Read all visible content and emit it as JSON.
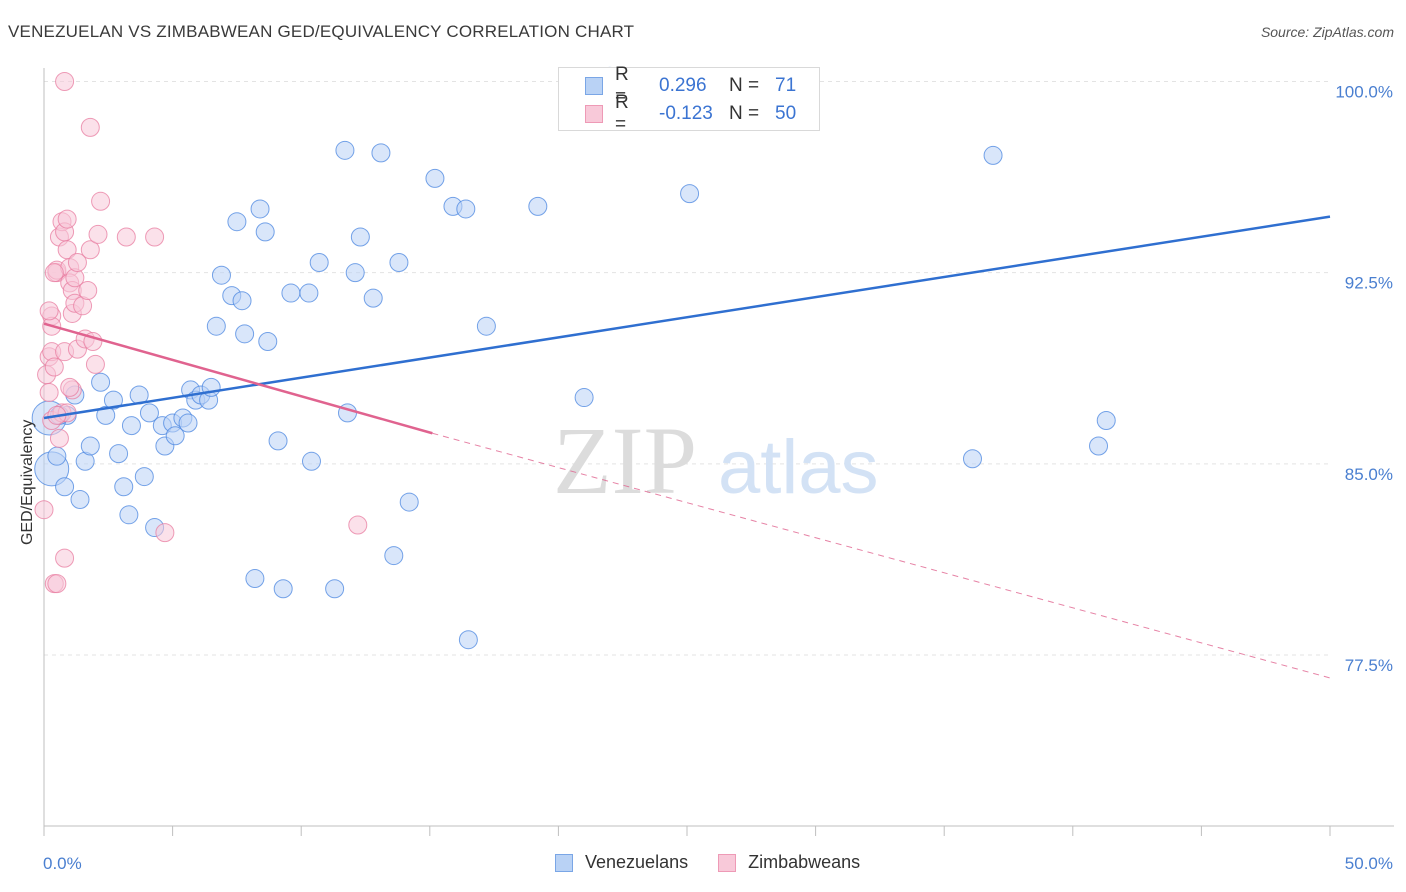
{
  "title": "VENEZUELAN VS ZIMBABWEAN GED/EQUIVALENCY CORRELATION CHART",
  "source": "Source: ZipAtlas.com",
  "watermark": {
    "zip": "ZIP",
    "atlas": "atlas"
  },
  "legend": {
    "rows": [
      {
        "r_label": "R =",
        "r_value": "0.296",
        "n_label": "N =",
        "n_value": "71",
        "color": "#4a86e0",
        "fill": "#b9d2f5"
      },
      {
        "r_label": "R =",
        "r_value": "-0.123",
        "n_label": "N =",
        "n_value": "50",
        "color": "#e87ca0",
        "fill": "#f8c9d9"
      }
    ]
  },
  "bottom_legend": [
    "Venezuelans",
    "Zimbabweans"
  ],
  "chart_data": {
    "type": "scatter",
    "title": "VENEZUELAN VS ZIMBABWEAN GED/EQUIVALENCY CORRELATION CHART",
    "xlabel": "",
    "ylabel": "GED/Equivalency",
    "xlim": [
      0,
      50
    ],
    "ylim": [
      70.5,
      102
    ],
    "x_tick_labels": [
      "0.0%",
      "50.0%"
    ],
    "y_ticks": [
      77.5,
      85.0,
      92.5,
      100.0
    ],
    "y_tick_labels": [
      "77.5%",
      "85.0%",
      "92.5%",
      "100.0%"
    ],
    "grid": true,
    "series": [
      {
        "name": "Venezuelans",
        "color": "#4a86e0",
        "fill": "#b9d2f5",
        "trend": {
          "x": [
            0,
            50
          ],
          "y": [
            86.8,
            94.7
          ],
          "style": "solid"
        },
        "points": [
          [
            0.3,
            84.8
          ],
          [
            0.5,
            85.3
          ],
          [
            0.8,
            84.1
          ],
          [
            0.9,
            86.9
          ],
          [
            1.2,
            87.7
          ],
          [
            1.4,
            83.6
          ],
          [
            1.6,
            85.1
          ],
          [
            1.8,
            85.7
          ],
          [
            2.2,
            88.2
          ],
          [
            2.4,
            86.9
          ],
          [
            2.7,
            87.5
          ],
          [
            2.9,
            85.4
          ],
          [
            3.1,
            84.1
          ],
          [
            3.3,
            83.0
          ],
          [
            3.4,
            86.5
          ],
          [
            3.7,
            87.7
          ],
          [
            3.9,
            84.5
          ],
          [
            4.1,
            87.0
          ],
          [
            4.3,
            82.5
          ],
          [
            4.6,
            86.5
          ],
          [
            4.7,
            85.7
          ],
          [
            5.0,
            86.6
          ],
          [
            5.1,
            86.1
          ],
          [
            5.4,
            86.8
          ],
          [
            5.6,
            86.6
          ],
          [
            5.7,
            87.9
          ],
          [
            5.9,
            87.5
          ],
          [
            6.1,
            87.7
          ],
          [
            6.4,
            87.5
          ],
          [
            6.5,
            88.0
          ],
          [
            6.7,
            90.4
          ],
          [
            6.9,
            92.4
          ],
          [
            7.3,
            91.6
          ],
          [
            7.7,
            91.4
          ],
          [
            7.5,
            94.5
          ],
          [
            7.8,
            90.1
          ],
          [
            8.2,
            80.5
          ],
          [
            8.4,
            95.0
          ],
          [
            8.6,
            94.1
          ],
          [
            8.7,
            89.8
          ],
          [
            9.1,
            85.9
          ],
          [
            9.3,
            80.1
          ],
          [
            9.6,
            91.7
          ],
          [
            10.3,
            91.7
          ],
          [
            10.4,
            85.1
          ],
          [
            10.7,
            92.9
          ],
          [
            11.3,
            80.1
          ],
          [
            11.7,
            97.3
          ],
          [
            11.8,
            87.0
          ],
          [
            12.1,
            92.5
          ],
          [
            12.3,
            93.9
          ],
          [
            12.8,
            91.5
          ],
          [
            13.1,
            97.2
          ],
          [
            13.6,
            81.4
          ],
          [
            13.8,
            92.9
          ],
          [
            14.2,
            83.5
          ],
          [
            15.2,
            96.2
          ],
          [
            15.9,
            95.1
          ],
          [
            16.4,
            95.0
          ],
          [
            16.5,
            78.1
          ],
          [
            17.2,
            90.4
          ],
          [
            19.2,
            95.1
          ],
          [
            21.0,
            87.6
          ],
          [
            22.0,
            100.2
          ],
          [
            25.1,
            95.6
          ],
          [
            36.1,
            85.2
          ],
          [
            36.9,
            97.1
          ],
          [
            41.0,
            85.7
          ],
          [
            41.3,
            86.7
          ],
          [
            0.2,
            86.8
          ],
          [
            0.6,
            86.9
          ]
        ]
      },
      {
        "name": "Zimbabweans",
        "color": "#e87ca0",
        "fill": "#f8c9d9",
        "trend": {
          "x": [
            0,
            15.1,
            50
          ],
          "y": [
            90.5,
            86.2,
            76.6
          ],
          "style": "solid-then-dashed"
        },
        "points": [
          [
            0.0,
            83.2
          ],
          [
            0.1,
            88.5
          ],
          [
            0.2,
            87.8
          ],
          [
            0.2,
            89.2
          ],
          [
            0.3,
            90.8
          ],
          [
            0.3,
            90.4
          ],
          [
            0.3,
            86.7
          ],
          [
            0.3,
            89.4
          ],
          [
            0.4,
            88.8
          ],
          [
            0.4,
            80.3
          ],
          [
            0.5,
            80.3
          ],
          [
            0.5,
            92.5
          ],
          [
            0.5,
            92.6
          ],
          [
            0.6,
            93.9
          ],
          [
            0.6,
            86.0
          ],
          [
            0.7,
            87.0
          ],
          [
            0.7,
            94.5
          ],
          [
            0.8,
            81.3
          ],
          [
            0.8,
            94.1
          ],
          [
            0.8,
            89.4
          ],
          [
            0.9,
            93.4
          ],
          [
            0.9,
            94.6
          ],
          [
            0.9,
            87.0
          ],
          [
            1.0,
            92.7
          ],
          [
            1.0,
            92.1
          ],
          [
            1.1,
            91.8
          ],
          [
            1.1,
            90.9
          ],
          [
            1.1,
            87.9
          ],
          [
            1.2,
            92.3
          ],
          [
            1.2,
            91.3
          ],
          [
            1.3,
            89.5
          ],
          [
            1.3,
            92.9
          ],
          [
            1.5,
            91.2
          ],
          [
            1.6,
            89.9
          ],
          [
            1.7,
            91.8
          ],
          [
            1.8,
            93.4
          ],
          [
            1.9,
            89.8
          ],
          [
            2.0,
            88.9
          ],
          [
            2.1,
            94.0
          ],
          [
            2.2,
            95.3
          ],
          [
            0.8,
            100.0
          ],
          [
            1.8,
            98.2
          ],
          [
            3.2,
            93.9
          ],
          [
            4.3,
            93.9
          ],
          [
            4.7,
            82.3
          ],
          [
            12.2,
            82.6
          ],
          [
            0.4,
            92.5
          ],
          [
            0.2,
            91.0
          ],
          [
            0.5,
            86.9
          ],
          [
            1.0,
            88.0
          ]
        ]
      }
    ]
  }
}
